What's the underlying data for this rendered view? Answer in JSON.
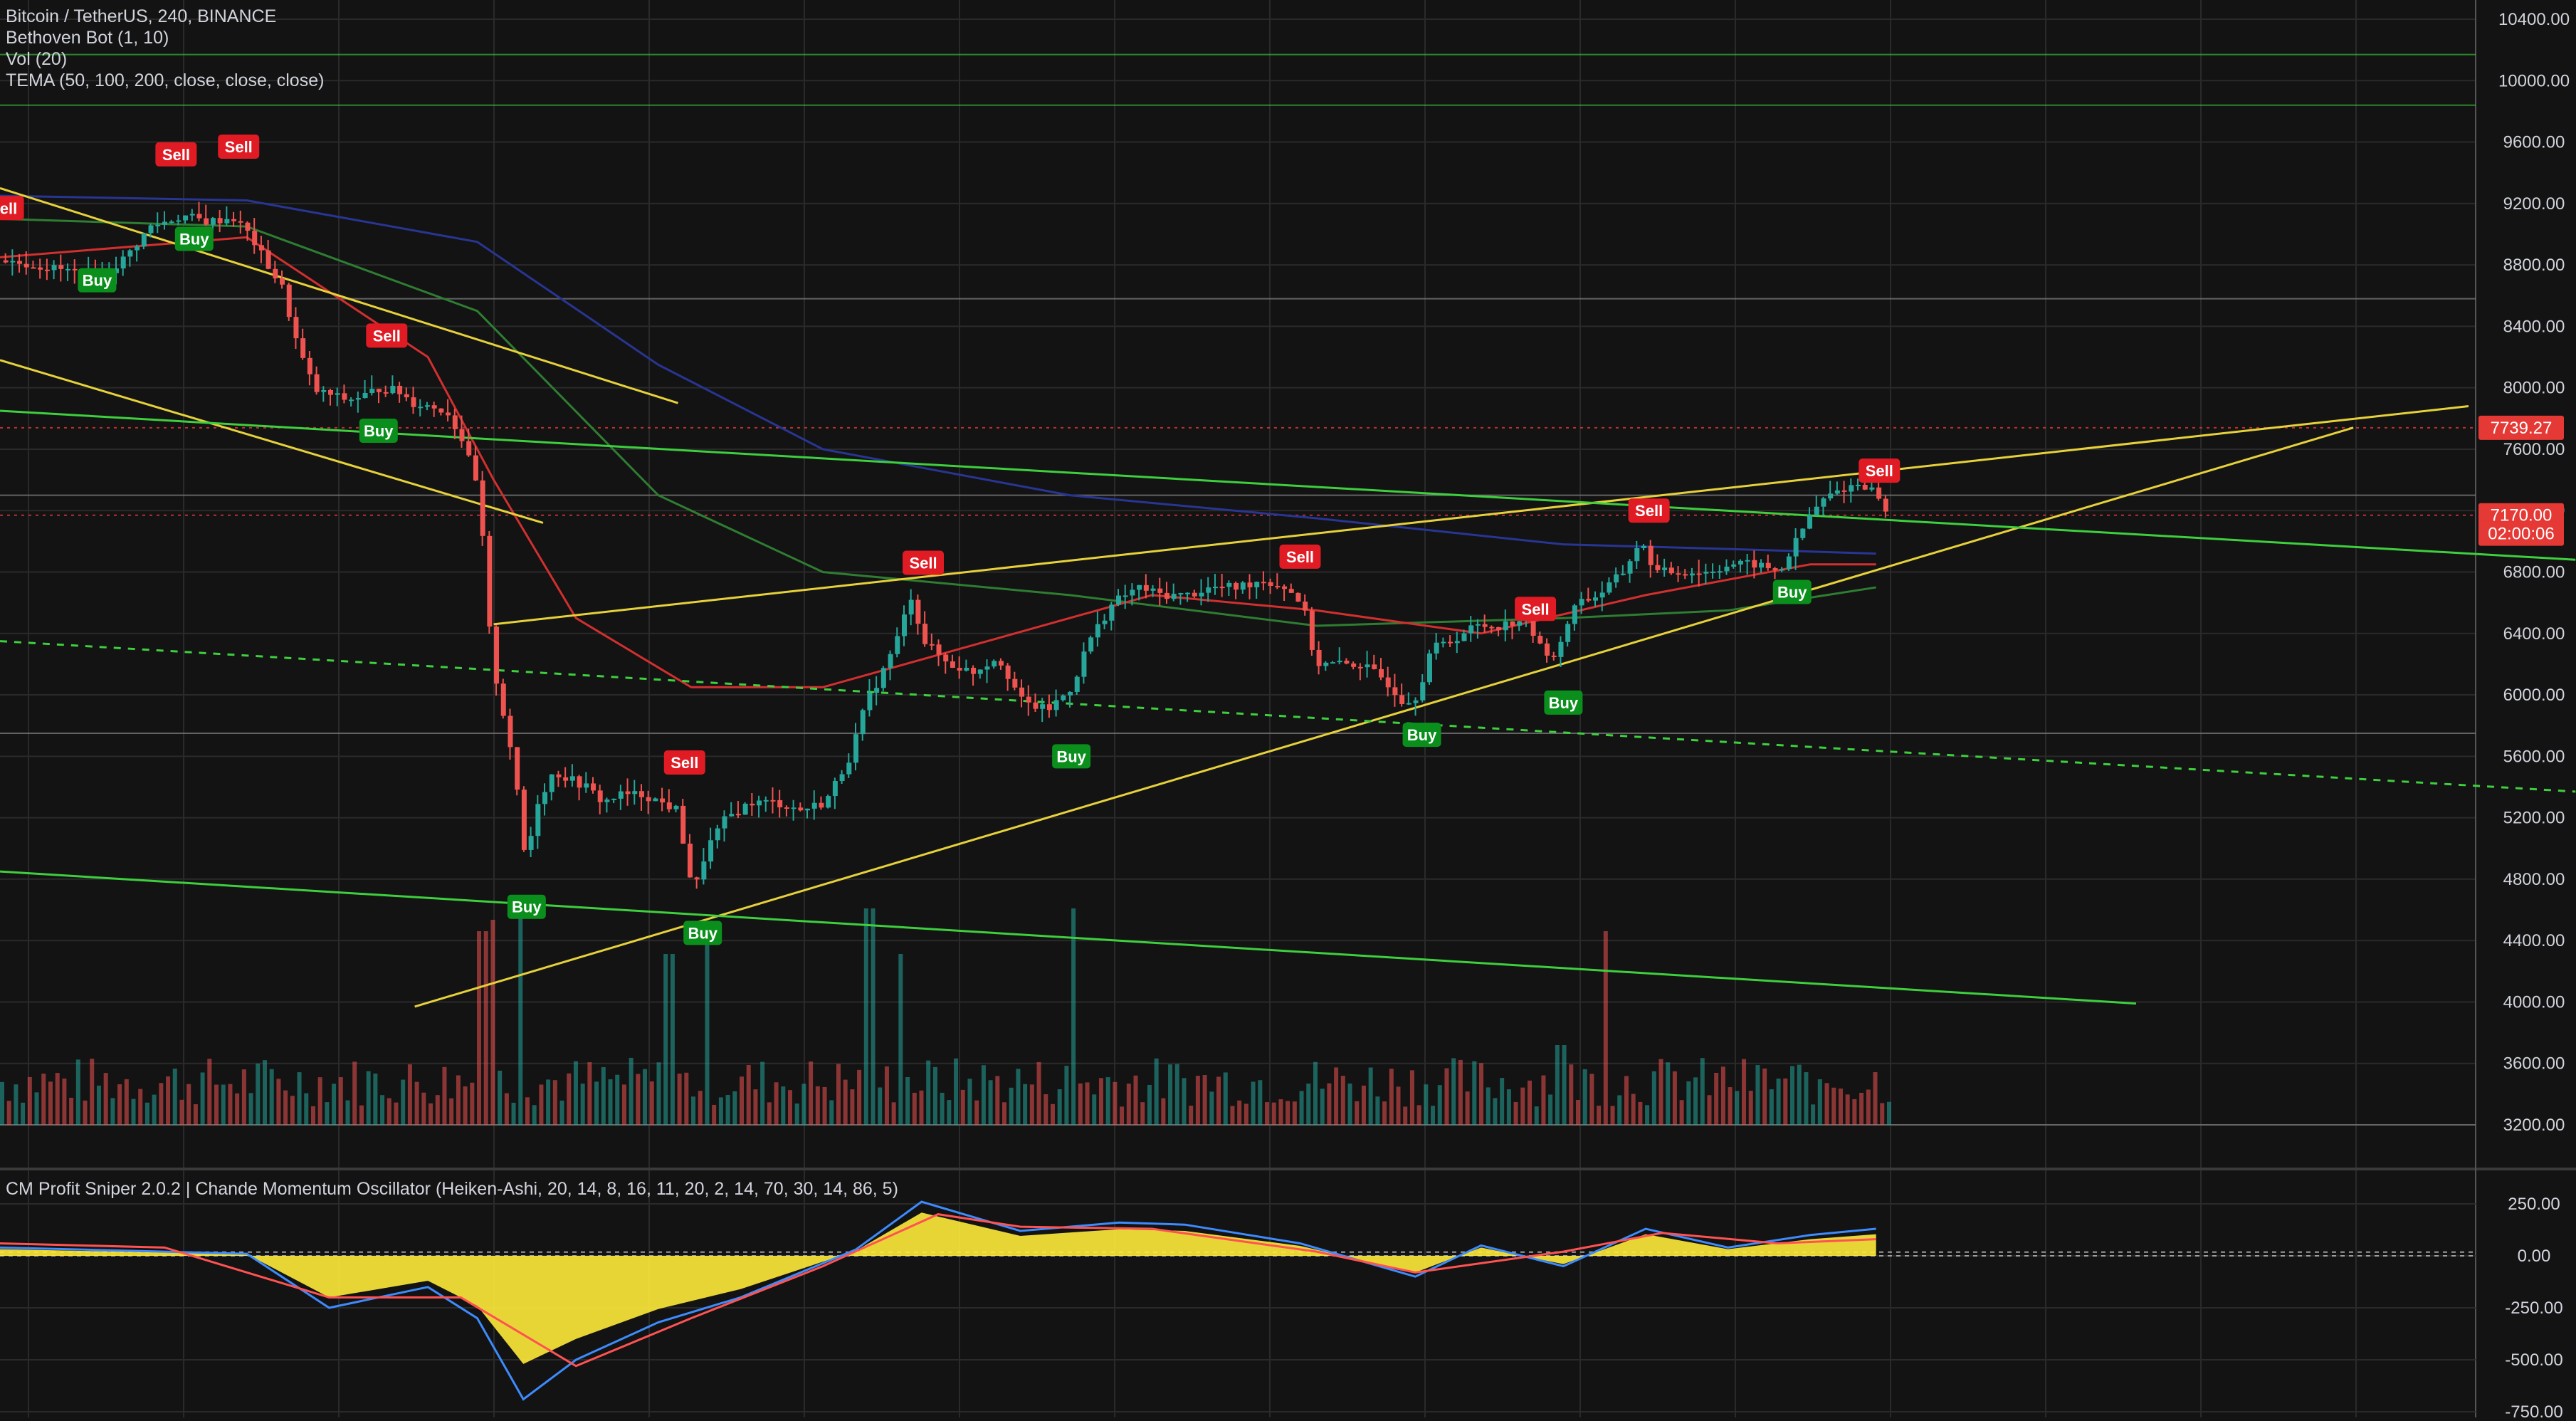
{
  "header": {
    "symbol_line": "Bitcoin / TetherUS, 240, BINANCE",
    "indicators": [
      "Bethoven Bot (1, 10)",
      "Vol (20)",
      "TEMA (50, 100, 200, close, close, close)"
    ]
  },
  "oscillator": {
    "title": "CM Profit Sniper 2.0.2 | Chande Momentum Oscillator (Heiken-Ashi, 20, 14, 8, 16, 11, 20, 2, 14, 70, 30, 14, 86, 5)"
  },
  "colors": {
    "background": "#131313",
    "grid": "#2a2a2a",
    "up": "#26a69a",
    "down": "#ef5350",
    "buy_badge": "#0a8f1c",
    "sell_badge": "#e01b24",
    "trendline_yellow": "#e6d13a",
    "trendline_green": "#3ecf3e",
    "tema_fast": "#d22f2f",
    "tema_mid": "#2e7d32",
    "tema_slow": "#283593",
    "osc_fill_yellow": "#ffeb3b",
    "osc_fill_teal": "#26c6da",
    "osc_line_blue": "#3d8bfd",
    "osc_line_red": "#ff5252",
    "osc_line_purple": "#9c27b0",
    "price_tag_red": "#e53935"
  },
  "chart_data": [
    {
      "type": "candlestick",
      "title": "Bitcoin / TetherUS, 240, BINANCE",
      "y_axis_ticks": [
        "10400.00",
        "10000.00",
        "9600.00",
        "9200.00",
        "8800.00",
        "8400.00",
        "8000.00",
        "7600.00",
        "7200.00",
        "6800.00",
        "6400.00",
        "6000.00",
        "5600.00",
        "5200.00",
        "4800.00",
        "4400.00",
        "4000.00",
        "3600.00",
        "3200.00"
      ],
      "ylim": [
        3000,
        10500
      ],
      "price_tags": [
        {
          "label": "7739.27",
          "value": 7739.27
        },
        {
          "label": "7170.00",
          "value": 7170
        },
        {
          "label": "02:00:06",
          "value": 7050
        }
      ],
      "close_path": [
        [
          0,
          8830
        ],
        [
          30,
          8780
        ],
        [
          60,
          8720
        ],
        [
          75,
          8850
        ],
        [
          90,
          9050
        ],
        [
          110,
          9120
        ],
        [
          125,
          9080
        ],
        [
          140,
          9110
        ],
        [
          150,
          9000
        ],
        [
          160,
          8820
        ],
        [
          170,
          8650
        ],
        [
          180,
          8250
        ],
        [
          190,
          7980
        ],
        [
          200,
          7950
        ],
        [
          210,
          7920
        ],
        [
          220,
          7950
        ],
        [
          230,
          8000
        ],
        [
          240,
          7980
        ],
        [
          250,
          7900
        ],
        [
          260,
          7880
        ],
        [
          270,
          7850
        ],
        [
          280,
          7650
        ],
        [
          290,
          7300
        ],
        [
          295,
          6500
        ],
        [
          300,
          6100
        ],
        [
          310,
          5600
        ],
        [
          318,
          4900
        ],
        [
          325,
          5300
        ],
        [
          335,
          5500
        ],
        [
          345,
          5450
        ],
        [
          355,
          5400
        ],
        [
          365,
          5300
        ],
        [
          375,
          5350
        ],
        [
          390,
          5350
        ],
        [
          400,
          5300
        ],
        [
          410,
          5250
        ],
        [
          420,
          4700
        ],
        [
          428,
          5000
        ],
        [
          440,
          5200
        ],
        [
          455,
          5300
        ],
        [
          470,
          5300
        ],
        [
          485,
          5250
        ],
        [
          500,
          5300
        ],
        [
          515,
          5600
        ],
        [
          525,
          5950
        ],
        [
          535,
          6150
        ],
        [
          545,
          6400
        ],
        [
          552,
          6650
        ],
        [
          560,
          6350
        ],
        [
          575,
          6200
        ],
        [
          590,
          6150
        ],
        [
          605,
          6250
        ],
        [
          620,
          5950
        ],
        [
          635,
          5900
        ],
        [
          650,
          6050
        ],
        [
          660,
          6350
        ],
        [
          675,
          6600
        ],
        [
          690,
          6700
        ],
        [
          705,
          6650
        ],
        [
          720,
          6650
        ],
        [
          735,
          6700
        ],
        [
          750,
          6700
        ],
        [
          765,
          6750
        ],
        [
          780,
          6700
        ],
        [
          790,
          6600
        ],
        [
          798,
          6200
        ],
        [
          810,
          6200
        ],
        [
          825,
          6200
        ],
        [
          840,
          6100
        ],
        [
          852,
          5950
        ],
        [
          860,
          6000
        ],
        [
          868,
          6300
        ],
        [
          880,
          6350
        ],
        [
          895,
          6450
        ],
        [
          910,
          6450
        ],
        [
          925,
          6500
        ],
        [
          935,
          6300
        ],
        [
          945,
          6250
        ],
        [
          955,
          6600
        ],
        [
          970,
          6650
        ],
        [
          985,
          6800
        ],
        [
          995,
          7000
        ],
        [
          1005,
          6800
        ],
        [
          1020,
          6800
        ],
        [
          1035,
          6800
        ],
        [
          1050,
          6850
        ],
        [
          1065,
          6850
        ],
        [
          1080,
          6800
        ],
        [
          1090,
          7000
        ],
        [
          1100,
          7200
        ],
        [
          1110,
          7300
        ],
        [
          1120,
          7350
        ],
        [
          1130,
          7380
        ],
        [
          1140,
          7300
        ],
        [
          1145,
          7170
        ]
      ],
      "signals": [
        {
          "label": "Sell",
          "x": 2,
          "price": 9170
        },
        {
          "label": "Buy",
          "x": 59,
          "price": 8700
        },
        {
          "label": "Sell",
          "x": 107,
          "price": 9520
        },
        {
          "label": "Buy",
          "x": 118,
          "price": 8970
        },
        {
          "label": "Sell",
          "x": 145,
          "price": 9570
        },
        {
          "label": "Sell",
          "x": 235,
          "price": 8340
        },
        {
          "label": "Buy",
          "x": 230,
          "price": 7720
        },
        {
          "label": "Buy",
          "x": 320,
          "price": 4620
        },
        {
          "label": "Sell",
          "x": 416,
          "price": 5560
        },
        {
          "label": "Buy",
          "x": 427,
          "price": 4450
        },
        {
          "label": "Sell",
          "x": 561,
          "price": 6860
        },
        {
          "label": "Buy",
          "x": 651,
          "price": 5600
        },
        {
          "label": "Sell",
          "x": 790,
          "price": 6900
        },
        {
          "label": "Buy",
          "x": 864,
          "price": 5740
        },
        {
          "label": "Sell",
          "x": 933,
          "price": 6560
        },
        {
          "label": "Buy",
          "x": 950,
          "price": 5950
        },
        {
          "label": "Sell",
          "x": 1002,
          "price": 7200
        },
        {
          "label": "Buy",
          "x": 1089,
          "price": 6670
        },
        {
          "label": "Sell",
          "x": 1142,
          "price": 7460
        }
      ],
      "trendlines": [
        {
          "color": "yellow",
          "dashed": false,
          "points": [
            [
              0,
              9300
            ],
            [
              412,
              7900
            ]
          ]
        },
        {
          "color": "yellow",
          "dashed": false,
          "points": [
            [
              0,
              8180
            ],
            [
              330,
              7120
            ]
          ]
        },
        {
          "color": "yellow",
          "dashed": false,
          "points": [
            [
              300,
              6460
            ],
            [
              1500,
              7880
            ]
          ]
        },
        {
          "color": "yellow",
          "dashed": false,
          "points": [
            [
              252,
              3970
            ],
            [
              1430,
              7740
            ]
          ]
        },
        {
          "color": "green",
          "dashed": false,
          "points": [
            [
              0,
              7850
            ],
            [
              1565,
              6880
            ]
          ]
        },
        {
          "color": "green",
          "dashed": false,
          "points": [
            [
              0,
              4850
            ],
            [
              1298,
              3990
            ]
          ]
        },
        {
          "color": "green",
          "dashed": true,
          "points": [
            [
              0,
              6350
            ],
            [
              1565,
              5370
            ]
          ]
        }
      ],
      "horizontal_lines": [
        {
          "color": "green",
          "value": 10170
        },
        {
          "color": "green",
          "value": 9840
        },
        {
          "color": "gray",
          "value": 8580
        },
        {
          "color": "gray",
          "value": 7300
        },
        {
          "color": "gray",
          "value": 5750
        },
        {
          "color": "gray",
          "value": 3200
        },
        {
          "color": "red-dotted",
          "value": 7739.27
        },
        {
          "color": "red-dotted",
          "value": 7170
        }
      ],
      "tema_series": [
        {
          "color": "slow",
          "points": [
            [
              0,
              9250
            ],
            [
              150,
              9220
            ],
            [
              290,
              8950
            ],
            [
              400,
              8150
            ],
            [
              500,
              7600
            ],
            [
              650,
              7300
            ],
            [
              800,
              7150
            ],
            [
              950,
              6980
            ],
            [
              1050,
              6950
            ],
            [
              1140,
              6920
            ]
          ]
        },
        {
          "color": "mid",
          "points": [
            [
              0,
              9100
            ],
            [
              150,
              9050
            ],
            [
              290,
              8500
            ],
            [
              400,
              7300
            ],
            [
              500,
              6800
            ],
            [
              650,
              6650
            ],
            [
              800,
              6450
            ],
            [
              950,
              6500
            ],
            [
              1050,
              6550
            ],
            [
              1140,
              6700
            ]
          ]
        },
        {
          "color": "fast",
          "points": [
            [
              0,
              8850
            ],
            [
              150,
              8980
            ],
            [
              260,
              8200
            ],
            [
              300,
              7400
            ],
            [
              350,
              6500
            ],
            [
              420,
              6050
            ],
            [
              500,
              6050
            ],
            [
              600,
              6350
            ],
            [
              700,
              6650
            ],
            [
              800,
              6550
            ],
            [
              900,
              6400
            ],
            [
              1000,
              6650
            ],
            [
              1100,
              6850
            ],
            [
              1140,
              6850
            ]
          ]
        }
      ],
      "volume": [
        {
          "x": 292,
          "v": 0.85,
          "up": false
        },
        {
          "x": 297,
          "v": 0.9,
          "up": false
        },
        {
          "x": 314,
          "v": 0.95,
          "up": true
        },
        {
          "x": 405,
          "v": 0.75,
          "up": true
        },
        {
          "x": 428,
          "v": 0.8,
          "up": true
        },
        {
          "x": 527,
          "v": 0.95,
          "up": true
        },
        {
          "x": 547,
          "v": 0.75,
          "up": true
        },
        {
          "x": 651,
          "v": 0.95,
          "up": true
        },
        {
          "x": 975,
          "v": 0.85,
          "up": false
        },
        {
          "x": 948,
          "v": 0.35,
          "up": true
        },
        {
          "x": 1105,
          "v": 0.2,
          "up": true
        }
      ]
    },
    {
      "type": "line",
      "title": "CM Profit Sniper 2.0.2 | Chande Momentum Oscillator (Heiken-Ashi, 20, 14, 8, 16, 11, 20, 2, 14, 70, 30, 14, 86, 5)",
      "y_axis_ticks": [
        "250.00",
        "0.00",
        "-250.00",
        "-500.00",
        "-750.00"
      ],
      "ylim": [
        -750,
        330
      ],
      "series": [
        {
          "color": "blue",
          "points": [
            [
              0,
              40
            ],
            [
              100,
              20
            ],
            [
              150,
              10
            ],
            [
              200,
              -250
            ],
            [
              260,
              -150
            ],
            [
              290,
              -300
            ],
            [
              318,
              -690
            ],
            [
              350,
              -500
            ],
            [
              400,
              -320
            ],
            [
              450,
              -200
            ],
            [
              520,
              30
            ],
            [
              560,
              260
            ],
            [
              620,
              120
            ],
            [
              680,
              160
            ],
            [
              720,
              150
            ],
            [
              790,
              60
            ],
            [
              860,
              -100
            ],
            [
              900,
              50
            ],
            [
              950,
              -50
            ],
            [
              1000,
              130
            ],
            [
              1050,
              40
            ],
            [
              1100,
              100
            ],
            [
              1140,
              130
            ]
          ]
        },
        {
          "color": "red",
          "points": [
            [
              0,
              60
            ],
            [
              100,
              40
            ],
            [
              200,
              -200
            ],
            [
              280,
              -200
            ],
            [
              350,
              -530
            ],
            [
              420,
              -300
            ],
            [
              500,
              -50
            ],
            [
              570,
              200
            ],
            [
              620,
              140
            ],
            [
              700,
              130
            ],
            [
              800,
              20
            ],
            [
              860,
              -80
            ],
            [
              950,
              20
            ],
            [
              1010,
              110
            ],
            [
              1080,
              60
            ],
            [
              1140,
              80
            ]
          ]
        }
      ],
      "zero_band": [
        0,
        15
      ]
    }
  ]
}
